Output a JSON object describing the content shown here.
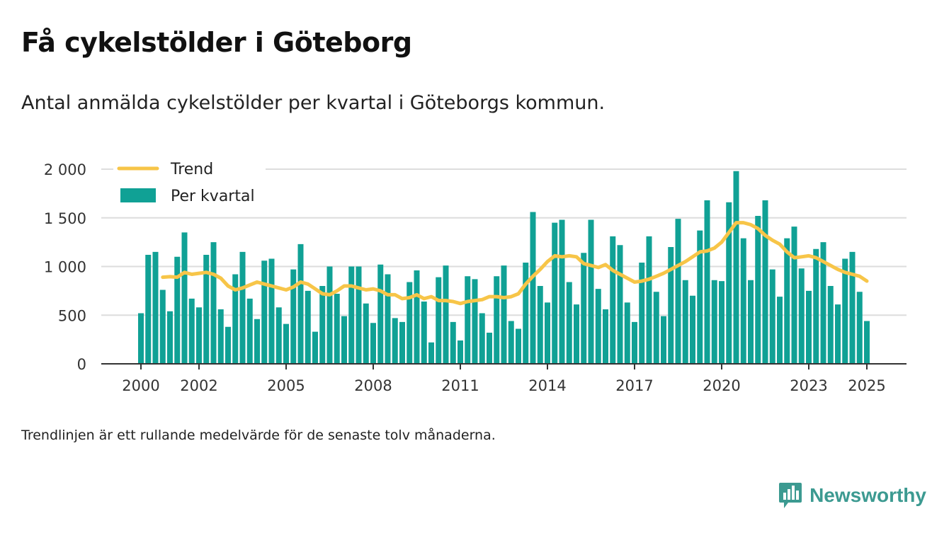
{
  "title": "Få cykelstölder i Göteborg",
  "subtitle": "Antal anmälda cykelstölder per kvartal i Göteborgs kommun.",
  "note": "Trendlinjen är ett rullande medelvärde för de senaste tolv månaderna.",
  "brand": "Newsworthy",
  "colors": {
    "bar": "#10a195",
    "trend": "#f7c548",
    "grid": "#dddddd",
    "axis": "#333333",
    "brand": "#3c9a91"
  },
  "icons": {
    "brand": "bar-chart-speech-bubble-icon"
  },
  "chart_data": {
    "type": "bar",
    "ylim": [
      0,
      2000
    ],
    "xlim": [
      2000,
      2025
    ],
    "yticks": [
      0,
      500,
      1000,
      1500,
      2000
    ],
    "ytick_labels": [
      "0",
      "500",
      "1 000",
      "1 500",
      "2 000"
    ],
    "xticks": [
      2000,
      2002,
      2005,
      2008,
      2011,
      2014,
      2017,
      2020,
      2023,
      2025
    ],
    "xtick_labels": [
      "2000",
      "2002",
      "2005",
      "2008",
      "2011",
      "2014",
      "2017",
      "2020",
      "2023",
      "2025"
    ],
    "grid": true,
    "legend_position": "top-left",
    "series": [
      {
        "name": "Per kvartal",
        "type": "bar",
        "x": [
          2000.0,
          2000.25,
          2000.5,
          2000.75,
          2001.0,
          2001.25,
          2001.5,
          2001.75,
          2002.0,
          2002.25,
          2002.5,
          2002.75,
          2003.0,
          2003.25,
          2003.5,
          2003.75,
          2004.0,
          2004.25,
          2004.5,
          2004.75,
          2005.0,
          2005.25,
          2005.5,
          2005.75,
          2006.0,
          2006.25,
          2006.5,
          2006.75,
          2007.0,
          2007.25,
          2007.5,
          2007.75,
          2008.0,
          2008.25,
          2008.5,
          2008.75,
          2009.0,
          2009.25,
          2009.5,
          2009.75,
          2010.0,
          2010.25,
          2010.5,
          2010.75,
          2011.0,
          2011.25,
          2011.5,
          2011.75,
          2012.0,
          2012.25,
          2012.5,
          2012.75,
          2013.0,
          2013.25,
          2013.5,
          2013.75,
          2014.0,
          2014.25,
          2014.5,
          2014.75,
          2015.0,
          2015.25,
          2015.5,
          2015.75,
          2016.0,
          2016.25,
          2016.5,
          2016.75,
          2017.0,
          2017.25,
          2017.5,
          2017.75,
          2018.0,
          2018.25,
          2018.5,
          2018.75,
          2019.0,
          2019.25,
          2019.5,
          2019.75,
          2020.0,
          2020.25,
          2020.5,
          2020.75,
          2021.0,
          2021.25,
          2021.5,
          2021.75,
          2022.0,
          2022.25,
          2022.5,
          2022.75,
          2023.0,
          2023.25,
          2023.5,
          2023.75,
          2024.0,
          2024.25,
          2024.5,
          2024.75,
          2025.0
        ],
        "values": [
          520,
          1120,
          1150,
          760,
          540,
          1100,
          1350,
          670,
          580,
          1120,
          1250,
          560,
          380,
          920,
          1150,
          670,
          460,
          1060,
          1080,
          580,
          410,
          970,
          1230,
          750,
          330,
          800,
          1000,
          720,
          490,
          1000,
          1000,
          620,
          420,
          1020,
          920,
          470,
          430,
          840,
          960,
          640,
          220,
          890,
          1010,
          430,
          240,
          900,
          870,
          520,
          320,
          900,
          1010,
          440,
          360,
          1040,
          1560,
          800,
          630,
          1450,
          1480,
          840,
          610,
          1140,
          1480,
          770,
          560,
          1310,
          1220,
          630,
          430,
          1040,
          1310,
          740,
          490,
          1200,
          1490,
          860,
          700,
          1370,
          1680,
          860,
          850,
          1660,
          1980,
          1290,
          860,
          1520,
          1680,
          970,
          690,
          1290,
          1410,
          980,
          750,
          1180,
          1250,
          800,
          610,
          1080,
          1150,
          740,
          440
        ]
      },
      {
        "name": "Trend",
        "type": "line",
        "x": [
          2000.75,
          2001.0,
          2001.25,
          2001.5,
          2001.75,
          2002.0,
          2002.25,
          2002.5,
          2002.75,
          2003.0,
          2003.25,
          2003.5,
          2003.75,
          2004.0,
          2004.25,
          2004.5,
          2004.75,
          2005.0,
          2005.25,
          2005.5,
          2005.75,
          2006.0,
          2006.25,
          2006.5,
          2006.75,
          2007.0,
          2007.25,
          2007.5,
          2007.75,
          2008.0,
          2008.25,
          2008.5,
          2008.75,
          2009.0,
          2009.25,
          2009.5,
          2009.75,
          2010.0,
          2010.25,
          2010.5,
          2010.75,
          2011.0,
          2011.25,
          2011.5,
          2011.75,
          2012.0,
          2012.25,
          2012.5,
          2012.75,
          2013.0,
          2013.25,
          2013.5,
          2013.75,
          2014.0,
          2014.25,
          2014.5,
          2014.75,
          2015.0,
          2015.25,
          2015.5,
          2015.75,
          2016.0,
          2016.25,
          2016.5,
          2016.75,
          2017.0,
          2017.25,
          2017.5,
          2017.75,
          2018.0,
          2018.25,
          2018.5,
          2018.75,
          2019.0,
          2019.25,
          2019.5,
          2019.75,
          2020.0,
          2020.25,
          2020.5,
          2020.75,
          2021.0,
          2021.25,
          2021.5,
          2021.75,
          2022.0,
          2022.25,
          2022.5,
          2022.75,
          2023.0,
          2023.25,
          2023.5,
          2023.75,
          2024.0,
          2024.25,
          2024.5,
          2024.75,
          2025.0
        ],
        "values": [
          890,
          895,
          890,
          940,
          920,
          930,
          940,
          920,
          880,
          800,
          760,
          780,
          810,
          840,
          820,
          800,
          780,
          760,
          790,
          840,
          820,
          770,
          720,
          710,
          750,
          800,
          800,
          780,
          760,
          770,
          750,
          710,
          710,
          670,
          680,
          710,
          670,
          690,
          650,
          650,
          640,
          620,
          640,
          650,
          660,
          690,
          690,
          680,
          690,
          720,
          820,
          900,
          970,
          1050,
          1110,
          1100,
          1110,
          1100,
          1030,
          1010,
          990,
          1020,
          960,
          920,
          880,
          840,
          850,
          870,
          900,
          930,
          970,
          1010,
          1050,
          1100,
          1150,
          1160,
          1190,
          1250,
          1350,
          1450,
          1450,
          1430,
          1390,
          1320,
          1270,
          1230,
          1150,
          1090,
          1100,
          1110,
          1090,
          1050,
          1010,
          970,
          940,
          920,
          900,
          850
        ]
      }
    ]
  }
}
